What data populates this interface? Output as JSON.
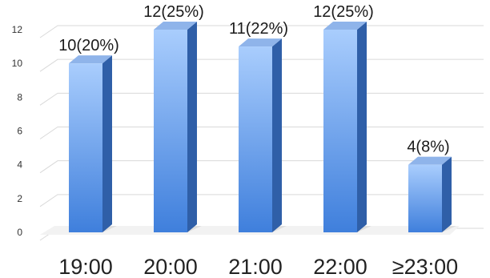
{
  "chart_data": {
    "type": "bar",
    "categories": [
      "19:00",
      "20:00",
      "21:00",
      "22:00",
      "≥23:00"
    ],
    "values": [
      10,
      12,
      11,
      12,
      4
    ],
    "data_labels": [
      "10(20%)",
      "12(25%)",
      "11(22%)",
      "12(25%)",
      "4(8%)"
    ],
    "title": "",
    "xlabel": "",
    "ylabel": "",
    "ylim": [
      0,
      12
    ],
    "yticks": [
      0,
      2,
      4,
      6,
      8,
      10,
      12
    ],
    "grid": true,
    "style": "3d",
    "colors": {
      "bar_light": "#a9cdfd",
      "bar_dark": "#3f7fdc",
      "bar_side": "#2f5fa8",
      "bar_top": "#8fb4ea",
      "shadow": "#d6d6d6"
    }
  }
}
